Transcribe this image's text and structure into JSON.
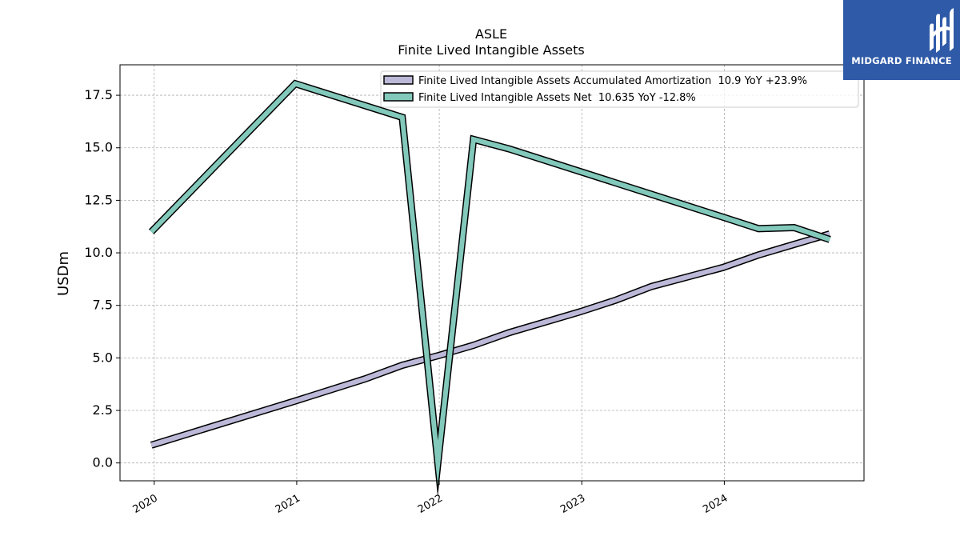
{
  "chart_data": {
    "type": "line",
    "title": "ASLE",
    "subtitle": "Finite Lived Intangible Assets",
    "ylabel": "USDm",
    "xlabel": "",
    "xlim": [
      2019.76,
      2024.98
    ],
    "ylim": [
      -0.85,
      18.95
    ],
    "yticks": [
      0.0,
      2.5,
      5.0,
      7.5,
      10.0,
      12.5,
      15.0,
      17.5
    ],
    "ytick_labels": [
      "0.0",
      "2.5",
      "5.0",
      "7.5",
      "10.0",
      "12.5",
      "15.0",
      "17.5"
    ],
    "xticks": [
      2020,
      2021,
      2022,
      2023,
      2024
    ],
    "xtick_labels": [
      "2020",
      "2021",
      "2022",
      "2023",
      "2024"
    ],
    "grid": true,
    "legend_position": "top-right",
    "series": [
      {
        "name": "Finite Lived Intangible Assets Accumulated Amortization  10.9 YoY +23.9%",
        "color": "#bcb8d8",
        "x": [
          2019.98,
          2020.99,
          2021.48,
          2021.74,
          2021.99,
          2022.24,
          2022.49,
          2022.99,
          2023.24,
          2023.49,
          2023.99,
          2024.24,
          2024.49,
          2024.74
        ],
        "y": [
          0.85,
          2.95,
          4.0,
          4.65,
          5.1,
          5.6,
          6.2,
          7.2,
          7.75,
          8.4,
          9.3,
          9.9,
          10.4,
          10.9
        ]
      },
      {
        "name": "Finite Lived Intangible Assets Net  10.635 YoY -12.8%",
        "color": "#82c9bb",
        "x": [
          2019.98,
          2020.99,
          2021.74,
          2021.99,
          2022.24,
          2022.49,
          2023.99,
          2024.24,
          2024.49,
          2024.74
        ],
        "y": [
          11.0,
          18.05,
          16.45,
          0.0,
          15.4,
          14.95,
          11.7,
          11.15,
          11.2,
          10.635
        ]
      }
    ]
  },
  "logo": {
    "text": "MIDGARD FINANCE"
  }
}
